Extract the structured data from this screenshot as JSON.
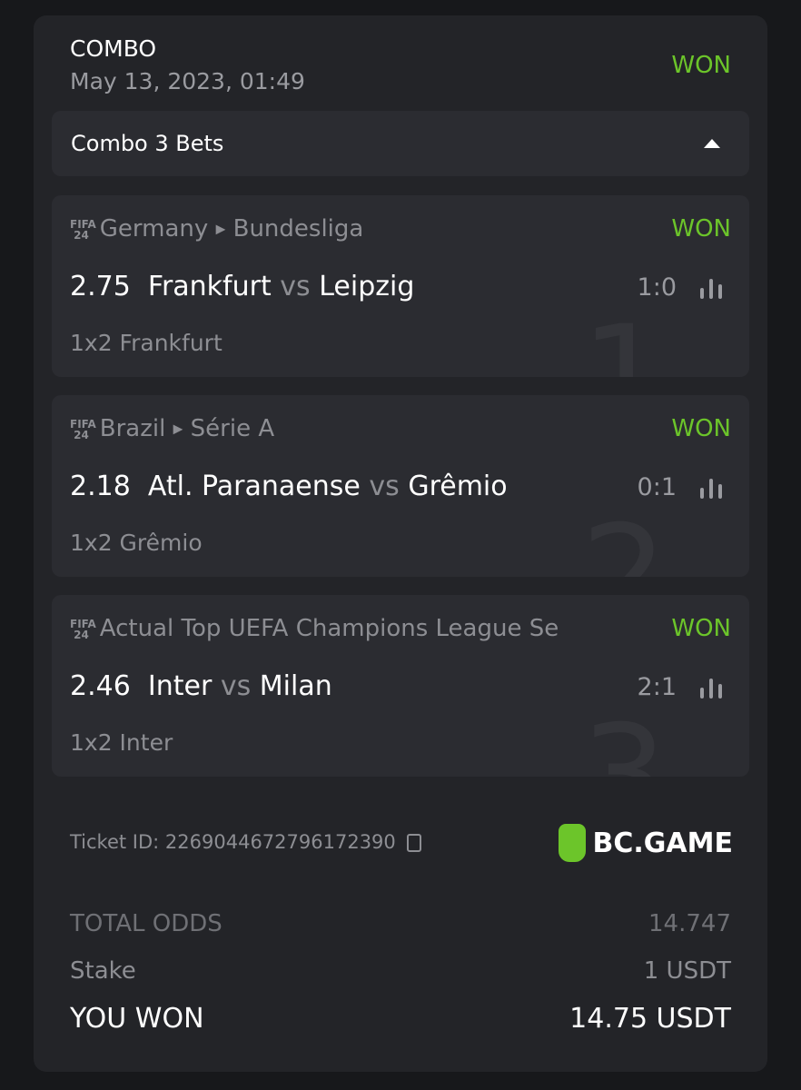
{
  "header": {
    "title": "COMBO",
    "date": "May 13, 2023, 01:49",
    "status": "WON"
  },
  "combo": {
    "label": "Combo 3 Bets"
  },
  "legs": [
    {
      "number": "1",
      "country": "Germany",
      "league": "Bundesliga",
      "odds": "2.75",
      "home": "Frankfurt",
      "vs": "vs",
      "away": "Leipzig",
      "score": "1:0",
      "pick": "1x2 Frankfurt",
      "status": "WON"
    },
    {
      "number": "2",
      "country": "Brazil",
      "league": "Série A",
      "odds": "2.18",
      "home": "Atl. Paranaense",
      "vs": "vs",
      "away": "Grêmio",
      "score": "0:1",
      "pick": "1x2 Grêmio",
      "status": "WON"
    },
    {
      "number": "3",
      "country": "",
      "league": "Actual Top UEFA Champions League Se",
      "odds": "2.46",
      "home": "Inter",
      "vs": "vs",
      "away": "Milan",
      "score": "2:1",
      "pick": "1x2 Inter",
      "status": "WON"
    }
  ],
  "game_badge": "FIFA 24",
  "ticket": {
    "label": "Ticket ID: 2269044672796172390"
  },
  "brand": "BC.GAME",
  "summary": {
    "total_odds_label": "TOTAL ODDS",
    "total_odds": "14.747",
    "stake_label": "Stake",
    "stake": "1 USDT",
    "won_label": "YOU WON",
    "won": "14.75 USDT"
  },
  "colors": {
    "accent": "#6cc52a",
    "card": "#232428",
    "background": "#17181b"
  }
}
